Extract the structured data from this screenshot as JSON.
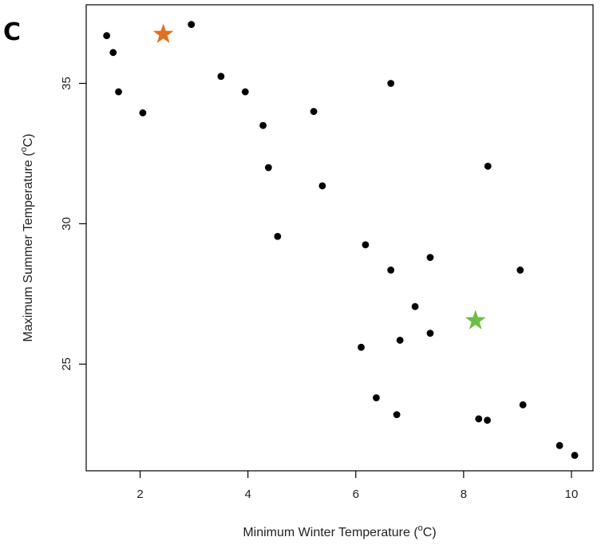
{
  "chart_data": {
    "type": "scatter",
    "panel_label": "C",
    "title": "",
    "xlabel": {
      "prefix": "Minimum Winter Temperature (",
      "degree": "o",
      "suffix": "C)"
    },
    "ylabel": {
      "prefix": "Maximum Summer Temperature (",
      "degree": "o",
      "suffix": "C)"
    },
    "xlim": [
      1.0,
      10.4
    ],
    "ylim": [
      21.2,
      37.8
    ],
    "x_ticks": [
      2,
      4,
      6,
      8,
      10
    ],
    "y_ticks": [
      25,
      30,
      35
    ],
    "grid": false,
    "legend": "none",
    "series": [
      {
        "marker": "dot",
        "color": "#000000",
        "points": [
          [
            1.38,
            36.7
          ],
          [
            1.5,
            36.1
          ],
          [
            1.6,
            34.7
          ],
          [
            2.05,
            33.95
          ],
          [
            2.95,
            37.1
          ],
          [
            3.5,
            35.25
          ],
          [
            3.95,
            34.7
          ],
          [
            4.28,
            33.5
          ],
          [
            4.38,
            32.0
          ],
          [
            4.55,
            29.55
          ],
          [
            5.22,
            34.0
          ],
          [
            5.38,
            31.35
          ],
          [
            6.65,
            35.0
          ],
          [
            6.18,
            29.25
          ],
          [
            6.65,
            28.35
          ],
          [
            7.38,
            28.8
          ],
          [
            7.1,
            27.05
          ],
          [
            7.38,
            26.1
          ],
          [
            6.1,
            25.6
          ],
          [
            6.82,
            25.85
          ],
          [
            6.38,
            23.8
          ],
          [
            6.76,
            23.2
          ],
          [
            8.45,
            32.05
          ],
          [
            9.05,
            28.35
          ],
          [
            8.28,
            23.05
          ],
          [
            8.44,
            23.0
          ],
          [
            9.1,
            23.55
          ],
          [
            9.78,
            22.1
          ],
          [
            10.06,
            21.75
          ]
        ]
      },
      {
        "marker": "star",
        "color": "#E0701E",
        "points": [
          [
            2.43,
            36.75
          ]
        ]
      },
      {
        "marker": "star",
        "color": "#6DBE45",
        "points": [
          [
            8.22,
            26.55
          ]
        ]
      }
    ]
  }
}
